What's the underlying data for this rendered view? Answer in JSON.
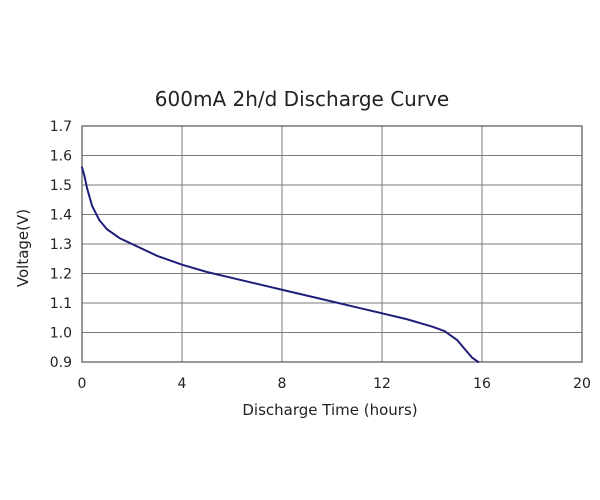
{
  "chart_data": {
    "type": "line",
    "title": "600mA 2h/d Discharge Curve",
    "xlabel": "Discharge Time (hours)",
    "ylabel": "Voltage(V)",
    "xlim": [
      0,
      20
    ],
    "ylim": [
      0.9,
      1.7
    ],
    "x_ticks": [
      0,
      4,
      8,
      12,
      16,
      20
    ],
    "y_ticks": [
      0.9,
      1.0,
      1.1,
      1.2,
      1.3,
      1.4,
      1.5,
      1.6,
      1.7
    ],
    "x_tick_labels": [
      "0",
      "4",
      "8",
      "12",
      "16",
      "20"
    ],
    "y_tick_labels": [
      "0.9",
      "1.0",
      "1.1",
      "1.2",
      "1.3",
      "1.4",
      "1.5",
      "1.6",
      "1.7"
    ],
    "grid": true,
    "series": [
      {
        "color": "#1f1f7a",
        "x": [
          0,
          0.1,
          0.2,
          0.4,
          0.7,
          1.0,
          1.5,
          2.0,
          3.0,
          4.0,
          5.0,
          6.0,
          7.0,
          8.0,
          9.0,
          10.0,
          11.0,
          12.0,
          13.0,
          14.0,
          14.5,
          15.0,
          15.3,
          15.6,
          15.85
        ],
        "values": [
          1.56,
          1.53,
          1.49,
          1.43,
          1.38,
          1.35,
          1.32,
          1.3,
          1.26,
          1.23,
          1.205,
          1.185,
          1.165,
          1.145,
          1.125,
          1.105,
          1.085,
          1.065,
          1.045,
          1.02,
          1.005,
          0.975,
          0.945,
          0.915,
          0.9
        ]
      }
    ]
  }
}
